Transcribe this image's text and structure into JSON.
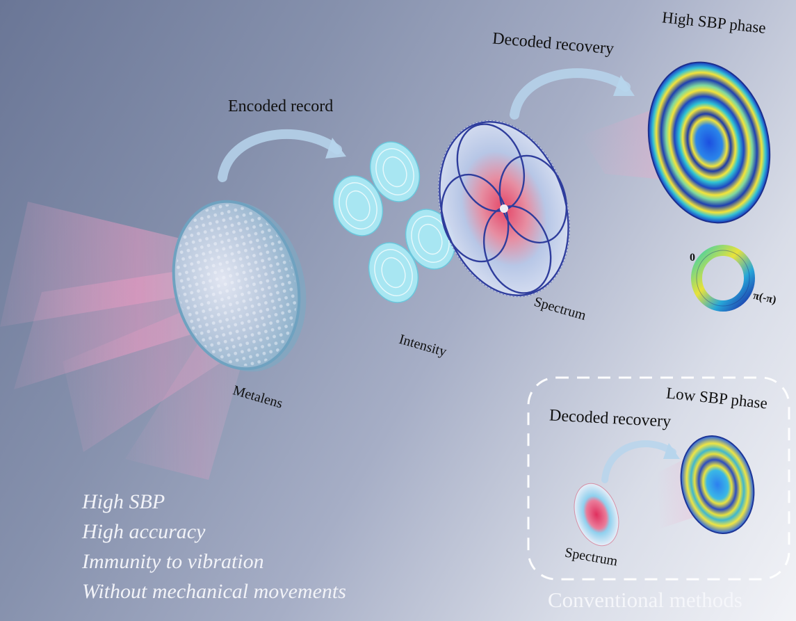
{
  "labels": {
    "encoded_record": "Encoded record",
    "decoded_recovery_top": "Decoded recovery",
    "high_sbp_phase": "High SBP phase",
    "metalens": "Metalens",
    "intensity": "Intensity",
    "spectrum_top": "Spectrum",
    "ring_zero": "0",
    "ring_pi": "π(-π)",
    "low_sbp_phase": "Low SBP phase",
    "decoded_recovery_bottom": "Decoded recovery",
    "spectrum_bottom": "Spectrum",
    "conventional_methods": "Conventional methods"
  },
  "features": [
    "High SBP",
    "High accuracy",
    "Immunity to vibration",
    "Without  mechanical movements"
  ],
  "colors": {
    "arrow": "#b9d6ec",
    "beam": "#f0a6c8",
    "phase_blue": "#1f5fe0",
    "phase_yellow": "#f4e43a",
    "phase_cyan": "#33c6d6",
    "intensity_fill": "#9fe2ee",
    "spectrum_red": "#e0526a",
    "spectrum_lines": "#2d3d9a"
  }
}
